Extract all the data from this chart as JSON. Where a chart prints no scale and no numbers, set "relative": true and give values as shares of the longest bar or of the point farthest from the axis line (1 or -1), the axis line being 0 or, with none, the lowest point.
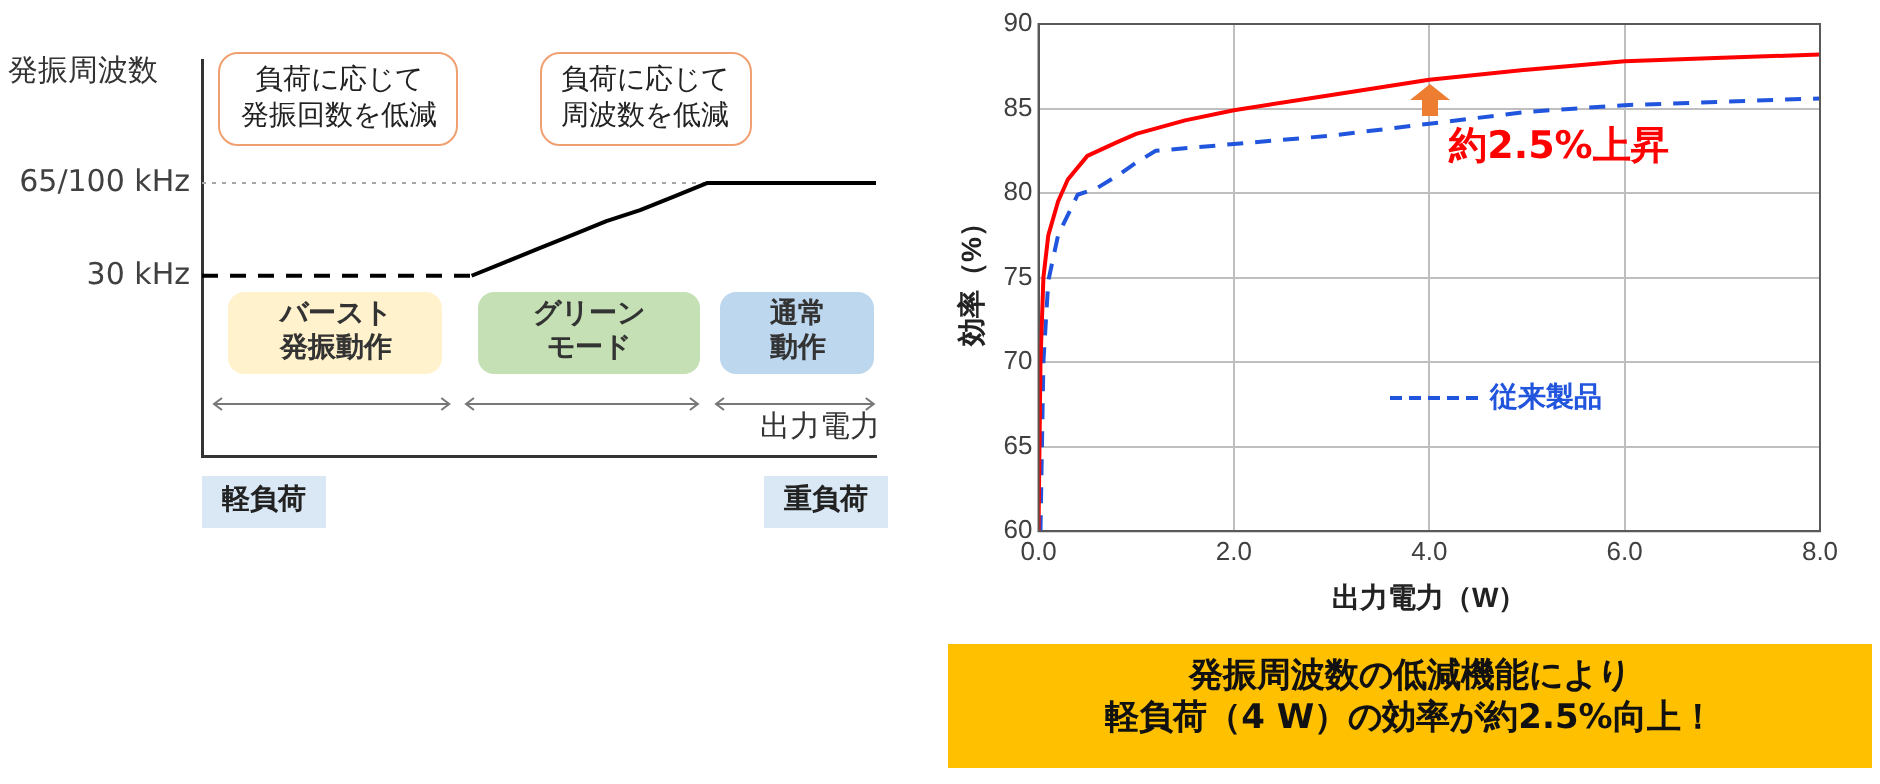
{
  "chart_data": [
    {
      "type": "line",
      "relative": true,
      "ylabel": "発振周波数",
      "xlabel": "出力電力",
      "categories": [
        null,
        null,
        null,
        null,
        null,
        null,
        null,
        null,
        null,
        null,
        null,
        null,
        null,
        null,
        null,
        null,
        null,
        null,
        null,
        null,
        null
      ],
      "series": [
        {
          "color": "#000000",
          "line_style": "dashed",
          "values": [
            0.66,
            0.66,
            0.66,
            0.66,
            0.66,
            0.66,
            0.66,
            0.66,
            0.66,
            null,
            null,
            null,
            null,
            null,
            null,
            null,
            null,
            null,
            null,
            null,
            null
          ]
        },
        {
          "color": "#000000",
          "line_style": "solid",
          "values": [
            null,
            null,
            null,
            null,
            null,
            null,
            null,
            null,
            0.66,
            0.71,
            0.76,
            0.81,
            0.86,
            0.9,
            0.95,
            1,
            1,
            1,
            1,
            1,
            1
          ]
        }
      ],
      "ref_lines": [
        {
          "axis": "y",
          "value": 1,
          "label": "65/100 kHz",
          "color": "#a6a6a6",
          "line_style": "dotted"
        }
      ],
      "tick_labels": false,
      "grid": false,
      "legend": false,
      "marker": "none",
      "annotations": [
        "30 kHz",
        "負荷に応じて発振回数を低減",
        "負荷に応じて周波数を低減",
        "バースト発振動作",
        "グリーンモード",
        "通常動作",
        "軽負荷",
        "重負荷"
      ]
    },
    {
      "type": "line",
      "xlabel": "出力電力（W）",
      "ylabel": "効率（%）",
      "series": [
        {
          "color": "#ff0000",
          "line_style": "solid",
          "x": [
            0,
            0.02,
            0.05,
            0.1,
            0.2,
            0.3,
            0.5,
            0.8,
            1.0,
            1.5,
            2.0,
            3.0,
            4.0,
            5.0,
            6.0,
            7.0,
            8.0
          ],
          "values": [
            60,
            70,
            75,
            77.5,
            79.5,
            80.8,
            82.2,
            83,
            83.5,
            84.3,
            84.9,
            85.8,
            86.7,
            87.3,
            87.8,
            88,
            88.2
          ]
        },
        {
          "name": "従来製品",
          "color": "#2255dd",
          "line_style": "dashed",
          "x": [
            0.02,
            0.05,
            0.1,
            0.2,
            0.4,
            0.6,
            0.8,
            1.0,
            1.2,
            2.0,
            3.0,
            4.0,
            5.0,
            6.0,
            7.0,
            8.0
          ],
          "values": [
            60,
            70,
            74.8,
            77.5,
            79.9,
            80.3,
            81,
            81.8,
            82.5,
            82.9,
            83.4,
            84.1,
            84.8,
            85.2,
            85.4,
            85.6
          ]
        }
      ],
      "xlim": [
        0,
        8
      ],
      "xticks": [
        {
          "value": 0,
          "label": "0.0"
        },
        {
          "value": 2,
          "label": "2.0"
        },
        {
          "value": 4,
          "label": "4.0"
        },
        {
          "value": 6,
          "label": "6.0"
        },
        {
          "value": 8,
          "label": "8.0"
        }
      ],
      "ylim": [
        60,
        90
      ],
      "yticks": [
        60,
        65,
        70,
        75,
        80,
        85,
        90
      ],
      "grid": true,
      "legend": "bottom right",
      "marker": "none",
      "annotations": [
        "約2.5%上昇",
        "発振周波数の低減機能により軽負荷（4 W）の効率が約2.5%向上！"
      ]
    }
  ]
}
